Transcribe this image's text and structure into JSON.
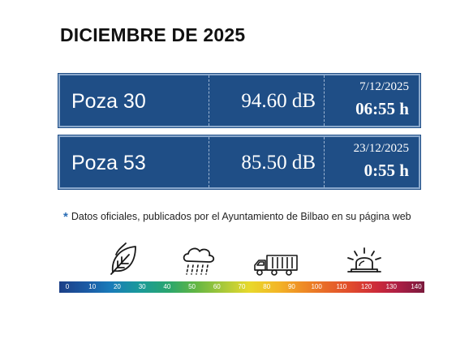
{
  "title": "DICIEMBRE DE 2025",
  "records": [
    {
      "name": "Poza 30",
      "value": "94.60 dB",
      "date": "7/12/2025",
      "time": "06:55 h"
    },
    {
      "name": "Poza 53",
      "value": "85.50 dB",
      "date": "23/12/2025",
      "time": "0:55 h"
    }
  ],
  "note": {
    "symbol": "*",
    "text": "Datos oficiales, publicados por el Ayuntamiento de Bilbao en su página web"
  },
  "icons": [
    "leaf-icon",
    "rain-cloud-icon",
    "truck-icon",
    "siren-icon"
  ],
  "scale": {
    "ticks": [
      "0",
      "10",
      "20",
      "30",
      "40",
      "50",
      "60",
      "70",
      "80",
      "90",
      "100",
      "110",
      "120",
      "130",
      "140"
    ],
    "colors": {
      "low": "#1c3f87",
      "mid": "#e8d92c",
      "high": "#7a1a3c"
    }
  },
  "colors": {
    "card": "#1f4e86",
    "text": "#ffffff"
  }
}
